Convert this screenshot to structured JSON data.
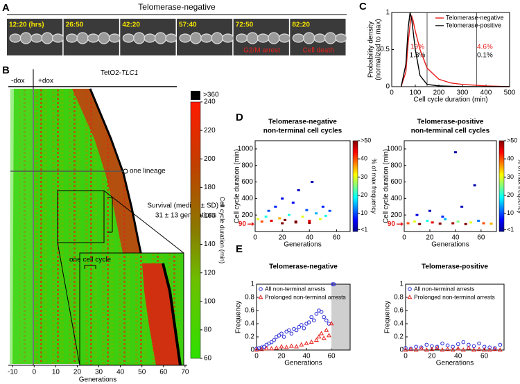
{
  "panel_labels": [
    "A",
    "B",
    "C",
    "D",
    "E"
  ],
  "chart_data": [
    {
      "type": "image-strip",
      "title": "Telomerase-negative",
      "frames": [
        {
          "label": "12:20 (hrs)"
        },
        {
          "label": "26:50"
        },
        {
          "label": "42:20"
        },
        {
          "label": "57:40"
        },
        {
          "label": "72:50",
          "note": "G2/M arrest"
        },
        {
          "label": "82:20",
          "note": "Cell death"
        }
      ]
    },
    {
      "type": "heatmap",
      "title_prefix": "TetO2-",
      "title_gene": "TLC1",
      "condition_labels": [
        "-dox",
        "+dox"
      ],
      "xlim": [
        -12,
        71
      ],
      "xticks": [
        -10,
        0,
        10,
        20,
        30,
        40,
        50,
        60,
        70
      ],
      "xlabel": "Generations",
      "clim": [
        60,
        240
      ],
      "cticks": [
        60,
        80,
        100,
        120,
        140,
        160,
        180,
        200,
        220,
        240
      ],
      "overflow_label": ">360",
      "clabel": "Cell cycle duration (min)",
      "annotations": [
        "one lineage",
        "Survival (median ± SD) =",
        "31 ± 13 generations",
        "one cell cycle"
      ]
    },
    {
      "type": "line",
      "xlim": [
        0,
        500
      ],
      "xticks": [
        0,
        100,
        200,
        300,
        400,
        500
      ],
      "ylim": [
        0,
        1
      ],
      "yticks": [
        0,
        0.5,
        1
      ],
      "xlabel": "Cell cycle duration (min)",
      "ylabel": [
        "Probability density",
        "(normalized to max)"
      ],
      "series": [
        {
          "name": "Telomerase-negative",
          "color": "#e8201c",
          "x": [
            40,
            60,
            70,
            80,
            85,
            90,
            100,
            120,
            150,
            200,
            250,
            300,
            400,
            500
          ],
          "values": [
            0,
            0.2,
            0.6,
            0.9,
            0.95,
            0.9,
            0.75,
            0.5,
            0.25,
            0.1,
            0.05,
            0.03,
            0.01,
            0
          ]
        },
        {
          "name": "Telomerase-positive",
          "color": "#000000",
          "x": [
            40,
            60,
            70,
            78,
            85,
            100,
            120,
            150,
            200,
            300,
            500
          ],
          "values": [
            0,
            0.3,
            0.8,
            1,
            0.9,
            0.5,
            0.15,
            0.03,
            0.01,
            0,
            0
          ]
        }
      ],
      "vlines": [
        {
          "value": 150,
          "labels": [
            {
              "text": "19%",
              "color": "#e8201c"
            },
            {
              "text": "1.3%",
              "color": "#000000"
            }
          ]
        },
        {
          "value": 360,
          "labels": [
            {
              "text": "4.6%",
              "color": "#e8201c"
            },
            {
              "text": "0.1%",
              "color": "#000000"
            }
          ]
        }
      ]
    },
    {
      "type": "density-scatter",
      "title": [
        "Telomerase-negative",
        "non-terminal cell cycles"
      ],
      "xlim": [
        0,
        70
      ],
      "xticks": [
        0,
        20,
        40,
        60
      ],
      "ylim": [
        0,
        1100
      ],
      "yticks": [
        200,
        400,
        600,
        800,
        1000
      ],
      "highlight_ytick": 90,
      "highlight_color": "#e8201c",
      "xlabel": "Generations",
      "ylabel": "Cell cycle duration (min)",
      "x": [
        2,
        5,
        8,
        10,
        12,
        15,
        18,
        20,
        22,
        25,
        28,
        30,
        32,
        35,
        38,
        40,
        42,
        45,
        48,
        50,
        52,
        55,
        20,
        30,
        40
      ],
      "y": [
        150,
        120,
        180,
        250,
        130,
        300,
        160,
        400,
        140,
        200,
        350,
        120,
        500,
        180,
        260,
        130,
        600,
        220,
        150,
        300,
        190,
        250,
        100,
        110,
        105
      ],
      "frequency": [
        30,
        40,
        20,
        10,
        45,
        8,
        35,
        5,
        50,
        20,
        6,
        50,
        3,
        30,
        10,
        45,
        2,
        15,
        30,
        8,
        20,
        10,
        50,
        50,
        48
      ],
      "clim": [
        0,
        50
      ],
      "cticks": [
        {
          "value": 1,
          "label": "<1"
        },
        10,
        20,
        30,
        40,
        {
          "value": 50,
          "label": ">50"
        }
      ],
      "clabel": "% of max frequency"
    },
    {
      "type": "density-scatter",
      "title": [
        "Telomerase-positive",
        "non-terminal cell cycles"
      ],
      "xlim": [
        0,
        72
      ],
      "xticks": [
        0,
        20,
        40,
        60
      ],
      "ylim": [
        0,
        1100
      ],
      "yticks": [
        200,
        400,
        600,
        800,
        1000
      ],
      "highlight_ytick": 90,
      "highlight_color": "#e8201c",
      "xlabel": "Generations",
      "ylabel": "Cell cycle duration (min)",
      "x": [
        3,
        8,
        12,
        18,
        22,
        28,
        32,
        38,
        42,
        48,
        52,
        58,
        62,
        68,
        40,
        55,
        20,
        45,
        10,
        30
      ],
      "y": [
        100,
        120,
        90,
        130,
        110,
        95,
        150,
        100,
        120,
        90,
        110,
        130,
        100,
        95,
        960,
        560,
        250,
        300,
        200,
        180
      ],
      "frequency": [
        40,
        30,
        50,
        20,
        45,
        50,
        15,
        48,
        25,
        50,
        30,
        12,
        40,
        35,
        2,
        2,
        3,
        3,
        5,
        8
      ],
      "clim": [
        0,
        50
      ],
      "cticks": [
        {
          "value": 1,
          "label": "<1"
        },
        10,
        20,
        30,
        40,
        {
          "value": 50,
          "label": ">50"
        }
      ],
      "clabel": "% of max frequency"
    },
    {
      "type": "scatter",
      "title": "Telomerase-negative",
      "xlim": [
        0,
        75
      ],
      "xticks": [
        0,
        20,
        40,
        60
      ],
      "ylim": [
        0,
        1
      ],
      "yticks": [
        0,
        0.2,
        0.4,
        0.6,
        0.8,
        1
      ],
      "xlabel": "Generations",
      "ylabel": "Frequency",
      "shaded_xrange": [
        60,
        75
      ],
      "series": [
        {
          "name": "All non-terminal arrests",
          "color": "#2b2bd6",
          "marker": "circle",
          "x": [
            0,
            2,
            4,
            6,
            8,
            10,
            12,
            14,
            16,
            18,
            20,
            22,
            24,
            26,
            28,
            30,
            32,
            34,
            36,
            38,
            40,
            42,
            44,
            46,
            48,
            50,
            52,
            54,
            56,
            58,
            61,
            62
          ],
          "values": [
            0.02,
            0.03,
            0.04,
            0.05,
            0.08,
            0.1,
            0.12,
            0.15,
            0.2,
            0.22,
            0.25,
            0.2,
            0.28,
            0.3,
            0.25,
            0.32,
            0.3,
            0.35,
            0.38,
            0.33,
            0.4,
            0.42,
            0.5,
            0.45,
            0.55,
            0.6,
            0.58,
            0.5,
            0.45,
            0.4,
            1,
            1
          ]
        },
        {
          "name": "Prolonged non-terminal arrests",
          "color": "#e8201c",
          "marker": "triangle",
          "x": [
            0,
            4,
            8,
            12,
            16,
            20,
            24,
            28,
            32,
            36,
            40,
            44,
            48,
            50,
            52,
            54,
            56,
            58,
            60
          ],
          "values": [
            0,
            0.01,
            0.02,
            0.02,
            0.03,
            0.05,
            0.04,
            0.06,
            0.05,
            0.08,
            0.1,
            0.12,
            0.15,
            0.2,
            0.25,
            0.18,
            0.3,
            0.22,
            0.4
          ]
        }
      ]
    },
    {
      "type": "scatter",
      "title": "Telomerase-positive",
      "xlim": [
        0,
        75
      ],
      "xticks": [
        0,
        20,
        40,
        60
      ],
      "ylim": [
        0,
        1
      ],
      "yticks": [
        0,
        0.2,
        0.4,
        0.6,
        0.8,
        1
      ],
      "xlabel": "Generations",
      "ylabel": "Frequency",
      "series": [
        {
          "name": "All non-terminal arrests",
          "color": "#2b2bd6",
          "marker": "circle",
          "x": [
            0,
            4,
            8,
            12,
            16,
            20,
            24,
            28,
            32,
            36,
            40,
            44,
            48,
            52,
            56,
            60,
            64,
            68,
            72
          ],
          "values": [
            0.03,
            0.02,
            0.05,
            0.04,
            0.08,
            0.06,
            0.05,
            0.1,
            0.07,
            0.05,
            0.09,
            0.12,
            0.08,
            0.06,
            0.1,
            0.05,
            0.04,
            0.03,
            0.08
          ]
        },
        {
          "name": "Prolonged non-terminal arrests",
          "color": "#e8201c",
          "marker": "triangle",
          "x": [
            0,
            4,
            8,
            12,
            16,
            20,
            24,
            28,
            32,
            36,
            40,
            44,
            48,
            52,
            56,
            60,
            64,
            68,
            72
          ],
          "values": [
            0,
            0.01,
            0,
            0.02,
            0,
            0.01,
            0.03,
            0,
            0.01,
            0,
            0.02,
            0,
            0.03,
            0,
            0.01,
            0,
            0,
            0.01,
            0
          ]
        }
      ]
    }
  ]
}
